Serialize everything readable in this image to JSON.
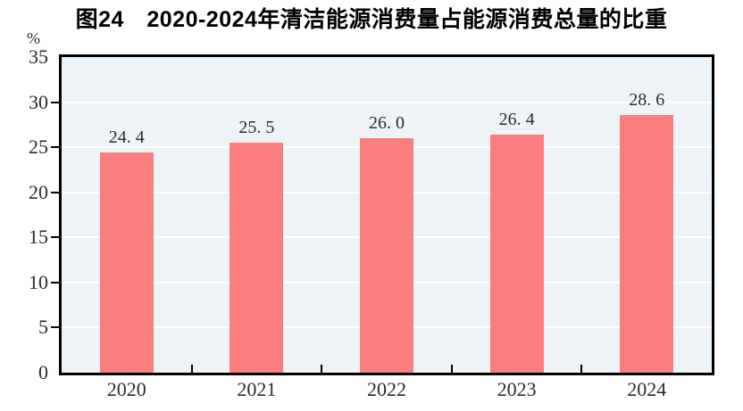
{
  "figure": {
    "title": "图24　2020-2024年清洁能源消费量占能源消费总量的比重",
    "unit_label": "%"
  },
  "chart_data": {
    "type": "bar",
    "title": "图24　2020-2024年清洁能源消费量占能源消费总量的比重",
    "categories": [
      "2020",
      "2021",
      "2022",
      "2023",
      "2024"
    ],
    "values": [
      24.4,
      25.5,
      26.0,
      26.4,
      28.6
    ],
    "value_labels": [
      "24. 4",
      "25. 5",
      "26. 0",
      "26. 4",
      "28. 6"
    ],
    "xlabel": "",
    "ylabel": "%",
    "ylim": [
      0,
      35
    ],
    "yticks": [
      0,
      5,
      10,
      15,
      20,
      25,
      30,
      35
    ],
    "grid": "horizontal",
    "legend": "none",
    "colors": {
      "bar": "#FB7E7E",
      "plot_background": "#EDF3F7",
      "gridline": "#FFFFFF",
      "axis": "#000000",
      "text": "#2B2B2B",
      "title_text": "#000000"
    }
  }
}
